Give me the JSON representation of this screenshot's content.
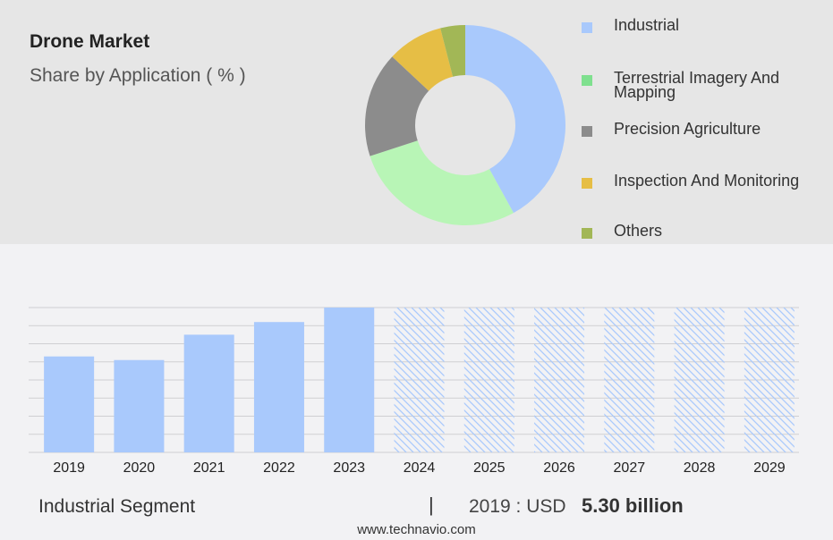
{
  "header": {
    "title": "Drone Market",
    "subtitle": "Share by Application ( % )"
  },
  "legend": [
    {
      "label": "Industrial",
      "color": "#a9c9fc"
    },
    {
      "label": "Terrestrial Imagery And Mapping",
      "color": "#7fe08f"
    },
    {
      "label": "Precision Agriculture",
      "color": "#8c8c8c"
    },
    {
      "label": "Inspection And Monitoring",
      "color": "#e6be45"
    },
    {
      "label": "Others",
      "color": "#a2b756"
    }
  ],
  "footer": {
    "segment_label": "Industrial Segment",
    "separator": "|",
    "year_text": "2019 : USD",
    "value_text": "5.30 billion",
    "source": "www.technavio.com"
  },
  "chart_data": [
    {
      "type": "pie",
      "title": "Share by Application ( % )",
      "categories": [
        "Industrial",
        "Terrestrial Imagery And Mapping",
        "Precision Agriculture",
        "Inspection And Monitoring",
        "Others"
      ],
      "values": [
        42,
        28,
        17,
        9,
        4
      ],
      "colors": [
        "#a9c9fc",
        "#b8f5b6",
        "#8c8c8c",
        "#e6be45",
        "#a2b756"
      ]
    },
    {
      "type": "bar",
      "categories": [
        "2019",
        "2020",
        "2021",
        "2022",
        "2023",
        "2024",
        "2025",
        "2026",
        "2027",
        "2028",
        "2029"
      ],
      "values": [
        5.3,
        5.1,
        6.5,
        7.2,
        8.0,
        8.0,
        8.0,
        8.0,
        8.0,
        8.0,
        8.0
      ],
      "forecast_from": "2024",
      "ylim": [
        0,
        8.0
      ],
      "grid": true,
      "color": "#a9c9fc"
    }
  ]
}
